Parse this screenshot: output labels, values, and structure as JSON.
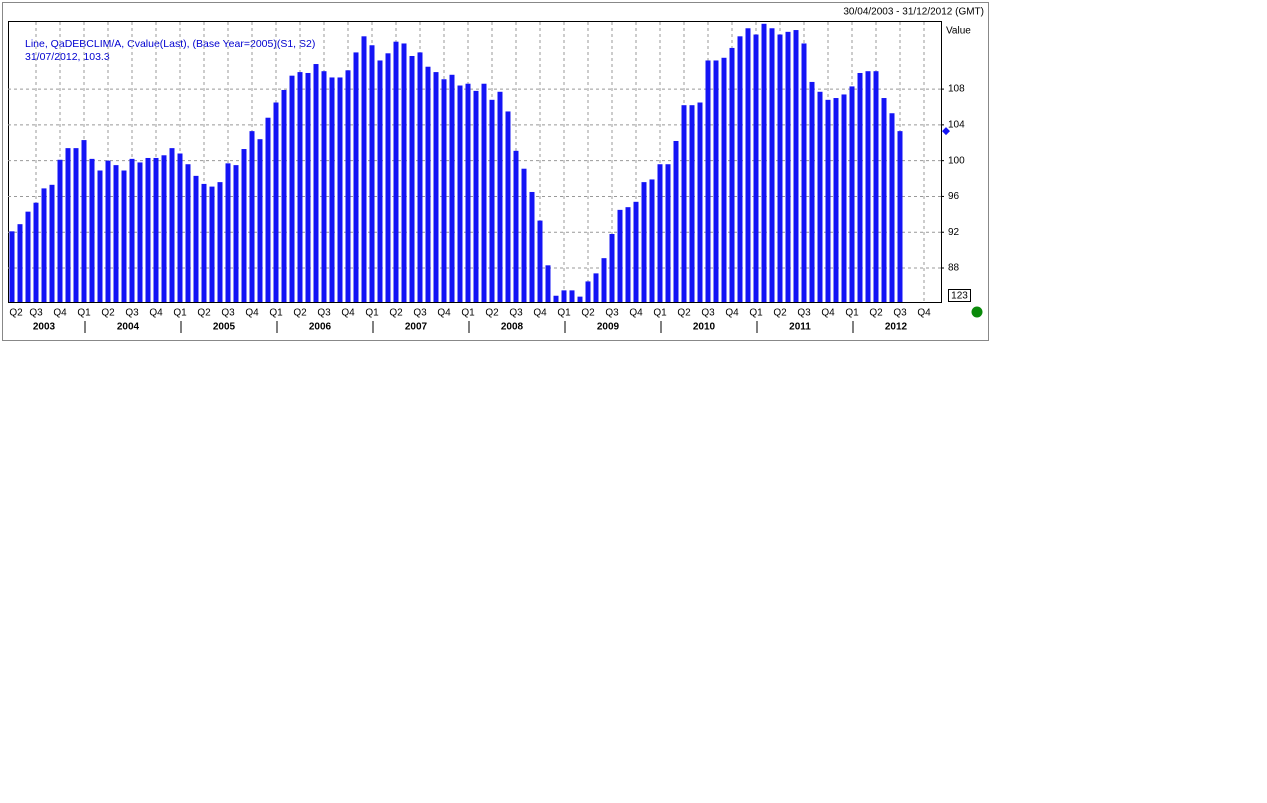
{
  "chart_data": {
    "type": "bar",
    "date_range": "30/04/2003 - 31/12/2012 (GMT)",
    "legend_lines": [
      "Line, QaDEBCLIM/A, Cvalue(Last), (Base Year=2005)(S1, S2)",
      "31/07/2012, 103.3"
    ],
    "y_axis_title": "Value",
    "axis_box_label": "123",
    "color": "#1414f5",
    "grid": true,
    "ylim": [
      84.2,
      115.5
    ],
    "yticks": [
      88,
      92,
      96,
      100,
      104,
      108
    ],
    "categories": [
      "Q2",
      null,
      null,
      "Q3",
      null,
      null,
      "Q4",
      null,
      null,
      "Q1",
      null,
      null,
      "Q2",
      null,
      null,
      "Q3",
      null,
      null,
      "Q4",
      null,
      null,
      "Q1",
      null,
      null,
      "Q2",
      null,
      null,
      "Q3",
      null,
      null,
      "Q4",
      null,
      null,
      "Q1",
      null,
      null,
      "Q2",
      null,
      null,
      "Q3",
      null,
      null,
      "Q4",
      null,
      null,
      "Q1",
      null,
      null,
      "Q2",
      null,
      null,
      "Q3",
      null,
      null,
      "Q4",
      null,
      null,
      "Q1",
      null,
      null,
      "Q2",
      null,
      null,
      "Q3",
      null,
      null,
      "Q4",
      null,
      null,
      "Q1",
      null,
      null,
      "Q2",
      null,
      null,
      "Q3",
      null,
      null,
      "Q4",
      null,
      null,
      "Q1",
      null,
      null,
      "Q2",
      null,
      null,
      "Q3",
      null,
      null,
      "Q4",
      null,
      null,
      "Q1",
      null,
      null,
      "Q2",
      null,
      null,
      "Q3",
      null,
      null,
      "Q4",
      null,
      null,
      "Q1",
      null,
      null,
      "Q2",
      null,
      null,
      "Q3",
      null,
      null,
      "Q4",
      null,
      null
    ],
    "years": [
      "2003",
      "2004",
      "2005",
      "2006",
      "2007",
      "2008",
      "2009",
      "2010",
      "2011",
      "2012"
    ],
    "values": [
      92.1,
      92.9,
      94.3,
      95.3,
      96.9,
      97.3,
      100.1,
      101.4,
      101.4,
      102.3,
      100.2,
      98.9,
      100.0,
      99.5,
      98.9,
      100.2,
      99.8,
      100.3,
      100.3,
      100.6,
      101.4,
      100.8,
      99.6,
      98.3,
      97.4,
      97.1,
      97.6,
      99.7,
      99.5,
      101.3,
      103.3,
      102.4,
      104.8,
      106.5,
      107.9,
      109.5,
      109.9,
      109.8,
      110.8,
      110.0,
      109.3,
      109.3,
      110.1,
      112.1,
      113.9,
      112.9,
      111.2,
      112.0,
      113.3,
      113.1,
      111.7,
      112.1,
      110.5,
      109.9,
      109.1,
      109.6,
      108.4,
      108.6,
      107.8,
      108.6,
      106.8,
      107.7,
      105.5,
      101.1,
      99.1,
      96.5,
      93.3,
      88.3,
      84.9,
      85.5,
      85.5,
      84.8,
      86.5,
      87.4,
      89.1,
      91.8,
      94.5,
      94.8,
      95.4,
      97.6,
      97.9,
      99.6,
      99.6,
      102.2,
      106.2,
      106.2,
      106.5,
      111.2,
      111.2,
      111.5,
      112.6,
      113.9,
      114.8,
      114.1,
      115.3,
      114.8,
      114.1,
      114.4,
      114.6,
      113.1,
      108.8,
      107.7,
      106.8,
      107.0,
      107.4,
      108.3,
      109.8,
      110.0,
      110.0,
      107.0,
      105.3,
      103.3,
      null,
      null,
      null,
      null,
      null
    ]
  }
}
